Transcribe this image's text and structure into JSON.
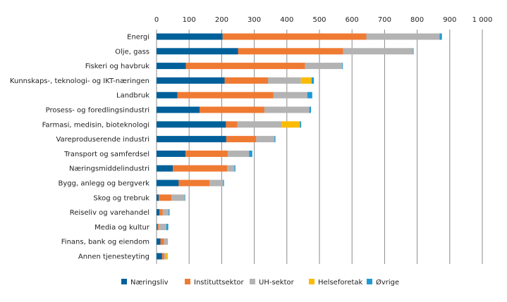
{
  "chart_data": {
    "type": "bar",
    "orientation": "horizontal",
    "stacked": true,
    "title": "",
    "xlabel": "",
    "ylabel": "",
    "xlim": [
      0,
      1000
    ],
    "xticks": [
      0,
      100,
      200,
      300,
      400,
      500,
      600,
      700,
      800,
      900,
      1000
    ],
    "xtick_labels": [
      "0",
      "100",
      "200",
      "300",
      "400",
      "500",
      "600",
      "700",
      "800",
      "900",
      "1 000"
    ],
    "grid": true,
    "legend_position": "bottom",
    "categories": [
      "Energi",
      "Olje, gass",
      "Fiskeri og havbruk",
      "Kunnskaps-, teknologi- og IKT-næringen",
      "Landbruk",
      "Prosess- og foredlingsindustri",
      "Farmasi, medisin, bioteknologi",
      "Vareproduserende industri",
      "Transport og samferdsel",
      "Næringsmiddelindustri",
      "Bygg, anlegg og bergverk",
      "Skog og trebruk",
      "Reiseliv og varehandel",
      "Media og kultur",
      "Finans, bank og eiendom",
      "Annen tjenesteyting"
    ],
    "series": [
      {
        "name": "Næringsliv",
        "color": "#00609a",
        "values": [
          203,
          250,
          90,
          209,
          64,
          132,
          213,
          214,
          89,
          50,
          68,
          7,
          9,
          3,
          12,
          17
        ]
      },
      {
        "name": "Instituttsektor",
        "color": "#ef7a32",
        "values": [
          441,
          323,
          366,
          133,
          295,
          199,
          35,
          92,
          130,
          167,
          95,
          39,
          10,
          4,
          11,
          7
        ]
      },
      {
        "name": "UH-sektor",
        "color": "#b3b3b3",
        "values": [
          225,
          214,
          114,
          101,
          104,
          138,
          136,
          56,
          65,
          22,
          41,
          40,
          18,
          23,
          12,
          5
        ]
      },
      {
        "name": "Helseforetak",
        "color": "#fbbb00",
        "values": [
          0,
          0,
          0,
          33,
          0,
          0,
          56,
          0,
          0,
          0,
          0,
          0,
          0,
          0,
          0,
          4
        ]
      },
      {
        "name": "Øvrige",
        "color": "#1f9ad6",
        "values": [
          7,
          2,
          2,
          7,
          15,
          5,
          4,
          3,
          10,
          3,
          3,
          2,
          3,
          6,
          0,
          1
        ]
      }
    ]
  }
}
